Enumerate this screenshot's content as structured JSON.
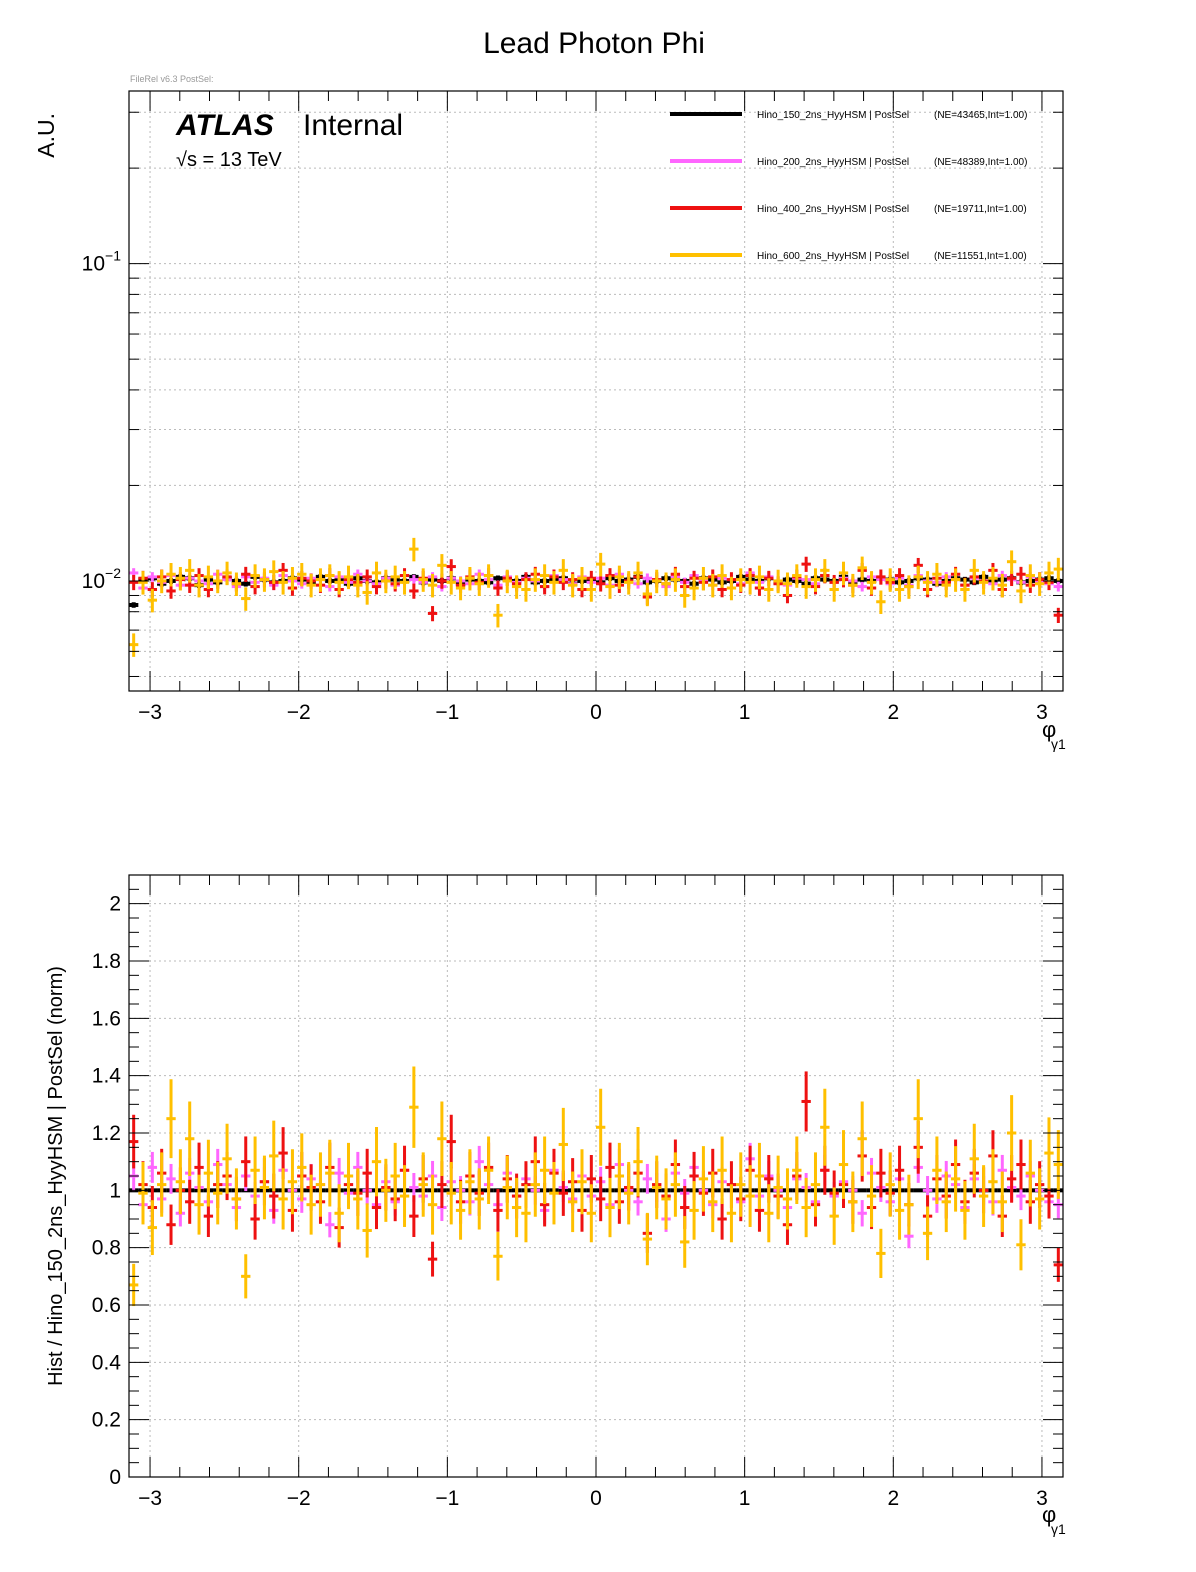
{
  "page": {
    "title": "Lead Photon Phi",
    "file_tag": "FileRel v6.3 PostSel:"
  },
  "atlas": {
    "atlas_label": "ATLAS",
    "internal_label": "Internal",
    "sqrt_s_symbol": "√s",
    "energy": " = 13 TeV"
  },
  "legend": [
    {
      "label": "Hino_150_2ns_HyyHSM | PostSel",
      "stats": "(NE=43465,Int=1.00)",
      "color": "#000000"
    },
    {
      "label": "Hino_200_2ns_HyyHSM | PostSel",
      "stats": "(NE=48389,Int=1.00)",
      "color": "#ff66ff"
    },
    {
      "label": "Hino_400_2ns_HyyHSM | PostSel",
      "stats": "(NE=19711,Int=1.00)",
      "color": "#ee1111"
    },
    {
      "label": "Hino_600_2ns_HyyHSM | PostSel",
      "stats": "(NE=11551,Int=1.00)",
      "color": "#ffc000"
    }
  ],
  "chart_data": [
    {
      "type": "scatter",
      "panel": "top",
      "ylabel": "A.U.",
      "xlabel_main": "φ",
      "xlabel_sub": "γ1",
      "xlim": [
        -3.1416,
        3.1416
      ],
      "ylim": [
        0.0045,
        0.35
      ],
      "yscale": "log",
      "grid": true,
      "legend_position": "top-right",
      "xticks": [
        {
          "v": -3,
          "label": "−3"
        },
        {
          "v": -2,
          "label": "−2"
        },
        {
          "v": -1,
          "label": "−1"
        },
        {
          "v": 0,
          "label": "0"
        },
        {
          "v": 1,
          "label": "1"
        },
        {
          "v": 2,
          "label": "2"
        },
        {
          "v": 3,
          "label": "3"
        }
      ],
      "yticks": [
        {
          "v": 0.1,
          "base": "10",
          "exp": "−1"
        },
        {
          "v": 0.01,
          "base": "10",
          "exp": "−2"
        }
      ],
      "series": [
        {
          "color": "#000000",
          "bin_width": 0.0628,
          "values": [
            0.0084,
            0.0101,
            0.0102,
            0.0098,
            0.01,
            0.0103,
            0.0102,
            0.0097,
            0.0101,
            0.0099,
            0.0102,
            0.01,
            0.0098,
            0.0103,
            0.0101,
            0.0099,
            0.01,
            0.0102,
            0.0101,
            0.0099,
            0.0103,
            0.01,
            0.0101,
            0.0098,
            0.0102,
            0.01,
            0.0099,
            0.0102,
            0.0101,
            0.01,
            0.0103,
            0.0099,
            0.0101,
            0.01,
            0.0102,
            0.0098,
            0.0101,
            0.01,
            0.0099,
            0.0102,
            0.0101,
            0.01,
            0.0103,
            0.0099,
            0.01,
            0.0101,
            0.0102,
            0.0098,
            0.01,
            0.0101,
            0.0099,
            0.0102,
            0.01,
            0.0101,
            0.0103,
            0.0099,
            0.01,
            0.0102,
            0.0101,
            0.01,
            0.0098,
            0.0102,
            0.0101,
            0.0099,
            0.01,
            0.0103,
            0.0101,
            0.01,
            0.0102,
            0.0099,
            0.0101,
            0.01,
            0.0098,
            0.0102,
            0.0101,
            0.01,
            0.0103,
            0.0099,
            0.0101,
            0.01,
            0.0102,
            0.0101,
            0.0099,
            0.01,
            0.0102,
            0.0101,
            0.0098,
            0.01,
            0.0102,
            0.0101,
            0.0099,
            0.0103,
            0.01,
            0.0101,
            0.0102,
            0.0099,
            0.01,
            0.0101,
            0.0102,
            0.01
          ]
        },
        {
          "color": "#ff66ff",
          "bin_width": 0.0628,
          "values": [
            0.0106,
            0.0095,
            0.0103,
            0.0099,
            0.0104,
            0.0097,
            0.0102,
            0.01,
            0.0098,
            0.0105,
            0.0101,
            0.0096,
            0.0103,
            0.0099,
            0.0102,
            0.0097,
            0.0104,
            0.01,
            0.0098,
            0.0102,
            0.0101,
            0.0096,
            0.0103,
            0.0099,
            0.0105,
            0.01,
            0.0098,
            0.0102,
            0.0097,
            0.0104,
            0.0101,
            0.0099,
            0.0103,
            0.0096,
            0.0102,
            0.01,
            0.0098,
            0.0105,
            0.0101,
            0.0097,
            0.0103,
            0.0099,
            0.0102,
            0.01,
            0.0096,
            0.0104,
            0.0101,
            0.0098,
            0.0103,
            0.0099,
            0.0102,
            0.0097,
            0.0105,
            0.01,
            0.0098,
            0.0102,
            0.0101,
            0.0096,
            0.0103,
            0.0099,
            0.0104,
            0.01,
            0.0097,
            0.0102,
            0.0101,
            0.0098,
            0.0106,
            0.0099,
            0.0103,
            0.01,
            0.0097,
            0.0102,
            0.0101,
            0.0098,
            0.0104,
            0.0099,
            0.0102,
            0.01,
            0.0096,
            0.0103,
            0.0101,
            0.0098,
            0.0102,
            0.0097,
            0.0104,
            0.01,
            0.0099,
            0.0103,
            0.0101,
            0.0097,
            0.0102,
            0.01,
            0.0098,
            0.0104,
            0.0101,
            0.0099,
            0.0103,
            0.01,
            0.0098,
            0.0096
          ]
        },
        {
          "color": "#ee1111",
          "bin_width": 0.0628,
          "values": [
            0.0099,
            0.0102,
            0.0094,
            0.0103,
            0.0093,
            0.0101,
            0.0097,
            0.0104,
            0.0094,
            0.01,
            0.0103,
            0.0098,
            0.0105,
            0.0096,
            0.0101,
            0.0099,
            0.0108,
            0.0095,
            0.0102,
            0.01,
            0.0097,
            0.0104,
            0.0094,
            0.0101,
            0.0099,
            0.0103,
            0.0096,
            0.01,
            0.0098,
            0.0104,
            0.0093,
            0.0102,
            0.0079,
            0.01,
            0.0111,
            0.0097,
            0.0103,
            0.0099,
            0.0104,
            0.0095,
            0.0102,
            0.0098,
            0.0101,
            0.0105,
            0.0096,
            0.0103,
            0.0099,
            0.0101,
            0.0094,
            0.0102,
            0.0098,
            0.0104,
            0.0097,
            0.01,
            0.0103,
            0.0089,
            0.0101,
            0.0098,
            0.0105,
            0.0096,
            0.0102,
            0.0099,
            0.0103,
            0.0094,
            0.0101,
            0.0097,
            0.0104,
            0.0095,
            0.0102,
            0.0098,
            0.009,
            0.0103,
            0.0113,
            0.0096,
            0.0104,
            0.0099,
            0.0101,
            0.0097,
            0.0108,
            0.0095,
            0.0103,
            0.0099,
            0.0104,
            0.0096,
            0.0112,
            0.0094,
            0.0102,
            0.0099,
            0.0105,
            0.0097,
            0.0103,
            0.01,
            0.0108,
            0.0094,
            0.0102,
            0.0105,
            0.0097,
            0.0101,
            0.0099,
            0.0078
          ]
        },
        {
          "color": "#ffc000",
          "bin_width": 0.0628,
          "values": [
            0.0063,
            0.0099,
            0.0087,
            0.01,
            0.0105,
            0.0102,
            0.0108,
            0.0097,
            0.0103,
            0.01,
            0.0106,
            0.0098,
            0.0088,
            0.0104,
            0.0101,
            0.0107,
            0.0099,
            0.0102,
            0.0105,
            0.0097,
            0.0101,
            0.0104,
            0.0099,
            0.0103,
            0.0097,
            0.0092,
            0.0106,
            0.01,
            0.0103,
            0.0099,
            0.0126,
            0.0101,
            0.0097,
            0.0112,
            0.0099,
            0.0095,
            0.0102,
            0.0098,
            0.0104,
            0.0078,
            0.01,
            0.0096,
            0.0094,
            0.0101,
            0.0104,
            0.0099,
            0.0108,
            0.0097,
            0.0102,
            0.0094,
            0.0113,
            0.0096,
            0.0103,
            0.0099,
            0.0106,
            0.0091,
            0.01,
            0.0098,
            0.0101,
            0.009,
            0.0095,
            0.0102,
            0.0097,
            0.0104,
            0.0095,
            0.0101,
            0.0099,
            0.0103,
            0.0094,
            0.01,
            0.0098,
            0.0104,
            0.0096,
            0.0101,
            0.0108,
            0.0094,
            0.0106,
            0.0097,
            0.011,
            0.0099,
            0.0086,
            0.0101,
            0.0094,
            0.0096,
            0.0103,
            0.0099,
            0.0105,
            0.0097,
            0.0101,
            0.0094,
            0.0108,
            0.0099,
            0.0102,
            0.0097,
            0.0115,
            0.0093,
            0.0104,
            0.0098,
            0.0106,
            0.0109
          ]
        }
      ]
    },
    {
      "type": "scatter",
      "panel": "bottom",
      "ylabel": "Hist / Hino_150_2ns_HyyHSM | PostSel   (norm)",
      "xlabel_main": "φ",
      "xlabel_sub": "γ1",
      "xlim": [
        -3.1416,
        3.1416
      ],
      "ylim": [
        0,
        2.1
      ],
      "yscale": "linear",
      "grid": true,
      "xticks": [
        {
          "v": -3,
          "label": "−3"
        },
        {
          "v": -2,
          "label": "−2"
        },
        {
          "v": -1,
          "label": "−1"
        },
        {
          "v": 0,
          "label": "0"
        },
        {
          "v": 1,
          "label": "1"
        },
        {
          "v": 2,
          "label": "2"
        },
        {
          "v": 3,
          "label": "3"
        }
      ],
      "yticks": [
        {
          "v": 0,
          "label": "0"
        },
        {
          "v": 0.2,
          "label": "0.2"
        },
        {
          "v": 0.4,
          "label": "0.4"
        },
        {
          "v": 0.6,
          "label": "0.6"
        },
        {
          "v": 0.8,
          "label": "0.8"
        },
        {
          "v": 1,
          "label": "1"
        },
        {
          "v": 1.2,
          "label": "1.2"
        },
        {
          "v": 1.4,
          "label": "1.4"
        },
        {
          "v": 1.6,
          "label": "1.6"
        },
        {
          "v": 1.8,
          "label": "1.8"
        },
        {
          "v": 2,
          "label": "2"
        }
      ],
      "series": [
        {
          "color": "#000000",
          "bin_width": 0.0628,
          "values": [
            1.0,
            1.0,
            1.0,
            1.0,
            1.0,
            1.0,
            1.0,
            1.0,
            1.0,
            1.0,
            1.0,
            1.0,
            1.0,
            1.0,
            1.0,
            1.0,
            1.0,
            1.0,
            1.0,
            1.0,
            1.0,
            1.0,
            1.0,
            1.0,
            1.0,
            1.0,
            1.0,
            1.0,
            1.0,
            1.0,
            1.0,
            1.0,
            1.0,
            1.0,
            1.0,
            1.0,
            1.0,
            1.0,
            1.0,
            1.0,
            1.0,
            1.0,
            1.0,
            1.0,
            1.0,
            1.0,
            1.0,
            1.0,
            1.0,
            1.0,
            1.0,
            1.0,
            1.0,
            1.0,
            1.0,
            1.0,
            1.0,
            1.0,
            1.0,
            1.0,
            1.0,
            1.0,
            1.0,
            1.0,
            1.0,
            1.0,
            1.0,
            1.0,
            1.0,
            1.0,
            1.0,
            1.0,
            1.0,
            1.0,
            1.0,
            1.0,
            1.0,
            1.0,
            1.0,
            1.0,
            1.0,
            1.0,
            1.0,
            1.0,
            1.0,
            1.0,
            1.0,
            1.0,
            1.0,
            1.0,
            1.0,
            1.0,
            1.0,
            1.0,
            1.0,
            1.0,
            1.0,
            1.0,
            1.0,
            1.0
          ]
        },
        {
          "color": "#ff66ff",
          "bin_width": 0.0628,
          "values": [
            1.05,
            0.95,
            1.08,
            0.97,
            1.04,
            0.92,
            1.06,
            1.01,
            0.96,
            1.09,
            1.02,
            0.94,
            1.05,
            0.98,
            1.03,
            0.93,
            1.07,
            1.0,
            0.97,
            1.04,
            1.02,
            0.88,
            1.06,
            0.99,
            1.08,
            1.0,
            0.95,
            1.03,
            0.96,
            1.07,
            1.01,
            0.98,
            1.05,
            0.94,
            1.03,
            1.0,
            0.96,
            1.1,
            1.02,
            0.95,
            1.06,
            0.98,
            1.04,
            1.0,
            0.93,
            1.07,
            1.01,
            0.97,
            1.05,
            0.98,
            1.03,
            0.95,
            1.09,
            1.0,
            0.96,
            1.04,
            1.01,
            0.9,
            1.06,
            0.99,
            1.08,
            1.0,
            0.95,
            1.03,
            1.02,
            0.96,
            1.11,
            0.98,
            1.05,
            1.0,
            0.94,
            1.04,
            1.01,
            0.96,
            1.07,
            0.98,
            1.03,
            1.0,
            0.92,
            1.06,
            1.01,
            0.96,
            1.04,
            0.84,
            1.08,
            1.0,
            0.97,
            1.05,
            1.02,
            0.94,
            1.04,
            1.0,
            0.96,
            1.07,
            1.01,
            0.98,
            1.05,
            1.0,
            0.96,
            0.95
          ]
        },
        {
          "color": "#ee1111",
          "bin_width": 0.0628,
          "values": [
            1.17,
            1.02,
            0.94,
            1.06,
            0.88,
            1.0,
            0.96,
            1.08,
            0.91,
            1.02,
            1.05,
            0.97,
            1.1,
            0.9,
            1.03,
            0.98,
            1.13,
            0.93,
            1.05,
            1.01,
            0.96,
            1.08,
            0.87,
            1.02,
            0.99,
            1.06,
            0.94,
            1.01,
            0.97,
            1.07,
            0.91,
            1.04,
            0.76,
            1.02,
            1.17,
            0.96,
            1.05,
            0.99,
            1.08,
            0.93,
            1.04,
            0.98,
            1.02,
            1.1,
            0.95,
            1.06,
            0.99,
            1.03,
            0.93,
            1.04,
            0.97,
            1.08,
            0.96,
            1.01,
            1.06,
            0.85,
            1.02,
            0.98,
            1.09,
            0.94,
            1.05,
            0.99,
            1.06,
            0.9,
            1.02,
            0.97,
            1.07,
            0.93,
            1.04,
            0.98,
            0.88,
            1.05,
            1.31,
            0.95,
            1.07,
            0.99,
            1.02,
            0.96,
            1.12,
            0.94,
            1.06,
            0.99,
            1.07,
            0.95,
            1.15,
            0.91,
            1.04,
            0.98,
            1.09,
            0.96,
            1.06,
            1.0,
            1.12,
            0.91,
            1.04,
            1.09,
            0.96,
            1.02,
            0.98,
            0.74
          ]
        },
        {
          "color": "#ffc000",
          "bin_width": 0.0628,
          "values": [
            0.67,
            0.99,
            0.87,
            1.02,
            1.25,
            1.03,
            1.18,
            0.95,
            1.06,
            0.99,
            1.11,
            0.97,
            0.7,
            1.07,
            1.01,
            1.12,
            0.97,
            1.03,
            1.08,
            0.95,
            1.02,
            1.06,
            0.92,
            1.05,
            0.97,
            0.86,
            1.1,
            1.0,
            1.05,
            0.98,
            1.29,
            1.02,
            0.95,
            1.18,
            0.99,
            0.93,
            1.03,
            0.97,
            1.07,
            0.77,
            1.01,
            0.94,
            0.92,
            1.02,
            1.07,
            0.99,
            1.16,
            0.96,
            1.03,
            0.92,
            1.22,
            0.94,
            1.05,
            0.99,
            1.1,
            0.83,
            1.01,
            0.97,
            1.02,
            0.82,
            0.93,
            1.04,
            0.96,
            1.07,
            0.92,
            1.02,
            0.98,
            1.05,
            0.92,
            1.01,
            0.97,
            1.07,
            0.94,
            1.02,
            1.22,
            0.91,
            1.09,
            0.96,
            1.18,
            0.98,
            0.78,
            1.02,
            0.93,
            0.95,
            1.25,
            0.85,
            1.07,
            0.96,
            1.04,
            0.93,
            1.11,
            0.98,
            1.03,
            0.96,
            1.2,
            0.81,
            1.06,
            0.97,
            1.13,
            1.09
          ]
        }
      ]
    }
  ]
}
